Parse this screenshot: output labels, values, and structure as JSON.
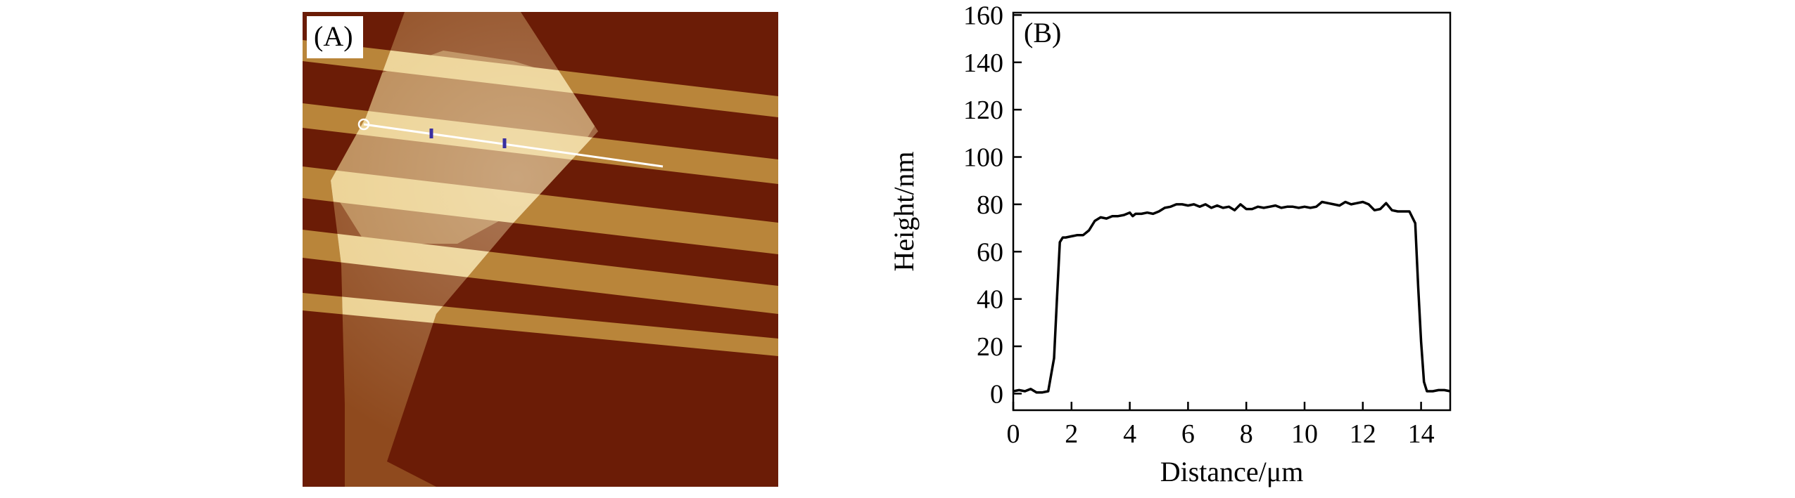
{
  "panel_a": {
    "label": "(A)",
    "colors": {
      "substrate": "#6b1c06",
      "electrode": "#b9853a",
      "flake_on_substrate": "#8f4a1e",
      "flake_on_electrode": "#ebd08f",
      "profile_line": "#ffffff",
      "cursor_markers": "#3a2fa0"
    }
  },
  "chart_data": {
    "type": "line",
    "panel_label": "(B)",
    "xlabel": "Distance/μm",
    "ylabel": "Height/nm",
    "xlim": [
      0,
      15
    ],
    "ylim": [
      -7,
      161
    ],
    "xticks": [
      0,
      2,
      4,
      6,
      8,
      10,
      12,
      14
    ],
    "yticks": [
      0,
      20,
      40,
      60,
      80,
      100,
      120,
      140,
      160
    ],
    "grid": false,
    "line_color": "#000000",
    "series": [
      {
        "x": [
          0,
          0.2,
          0.4,
          0.6,
          0.8,
          1.0,
          1.2,
          1.4,
          1.5,
          1.6,
          1.7,
          1.8,
          2.0,
          2.2,
          2.4,
          2.6,
          2.8,
          3.0,
          3.2,
          3.4,
          3.6,
          3.8,
          4.0,
          4.1,
          4.2,
          4.4,
          4.6,
          4.8,
          5.0,
          5.2,
          5.4,
          5.6,
          5.8,
          6.0,
          6.2,
          6.4,
          6.6,
          6.8,
          7.0,
          7.2,
          7.4,
          7.6,
          7.8,
          8.0,
          8.2,
          8.4,
          8.6,
          8.8,
          9.0,
          9.2,
          9.4,
          9.6,
          9.8,
          10.0,
          10.2,
          10.4,
          10.6,
          10.8,
          11.0,
          11.2,
          11.4,
          11.6,
          11.8,
          12.0,
          12.2,
          12.4,
          12.6,
          12.8,
          13.0,
          13.2,
          13.4,
          13.6,
          13.8,
          13.9,
          14.0,
          14.1,
          14.2,
          14.4,
          14.6,
          14.8,
          15.0
        ],
        "y": [
          1,
          1.5,
          1,
          2,
          0.5,
          0.5,
          1,
          15,
          40,
          64,
          66,
          66,
          66.5,
          67,
          67,
          69,
          73,
          74.5,
          74,
          75,
          75,
          75.5,
          76.5,
          75,
          76,
          76,
          76.5,
          76,
          77,
          78.5,
          79,
          80,
          80,
          79.5,
          80,
          79,
          80,
          78.5,
          79.5,
          78.5,
          79,
          77.5,
          80,
          78,
          78,
          79,
          78.5,
          79,
          79.5,
          78.5,
          79,
          79,
          78.5,
          79,
          78.5,
          79,
          81,
          80.5,
          80,
          79.5,
          81,
          80,
          80.5,
          81,
          80,
          77.5,
          78,
          80.5,
          77.5,
          77,
          77,
          77,
          72,
          45,
          22,
          5,
          1,
          1,
          1.5,
          1.5,
          1
        ]
      }
    ]
  }
}
